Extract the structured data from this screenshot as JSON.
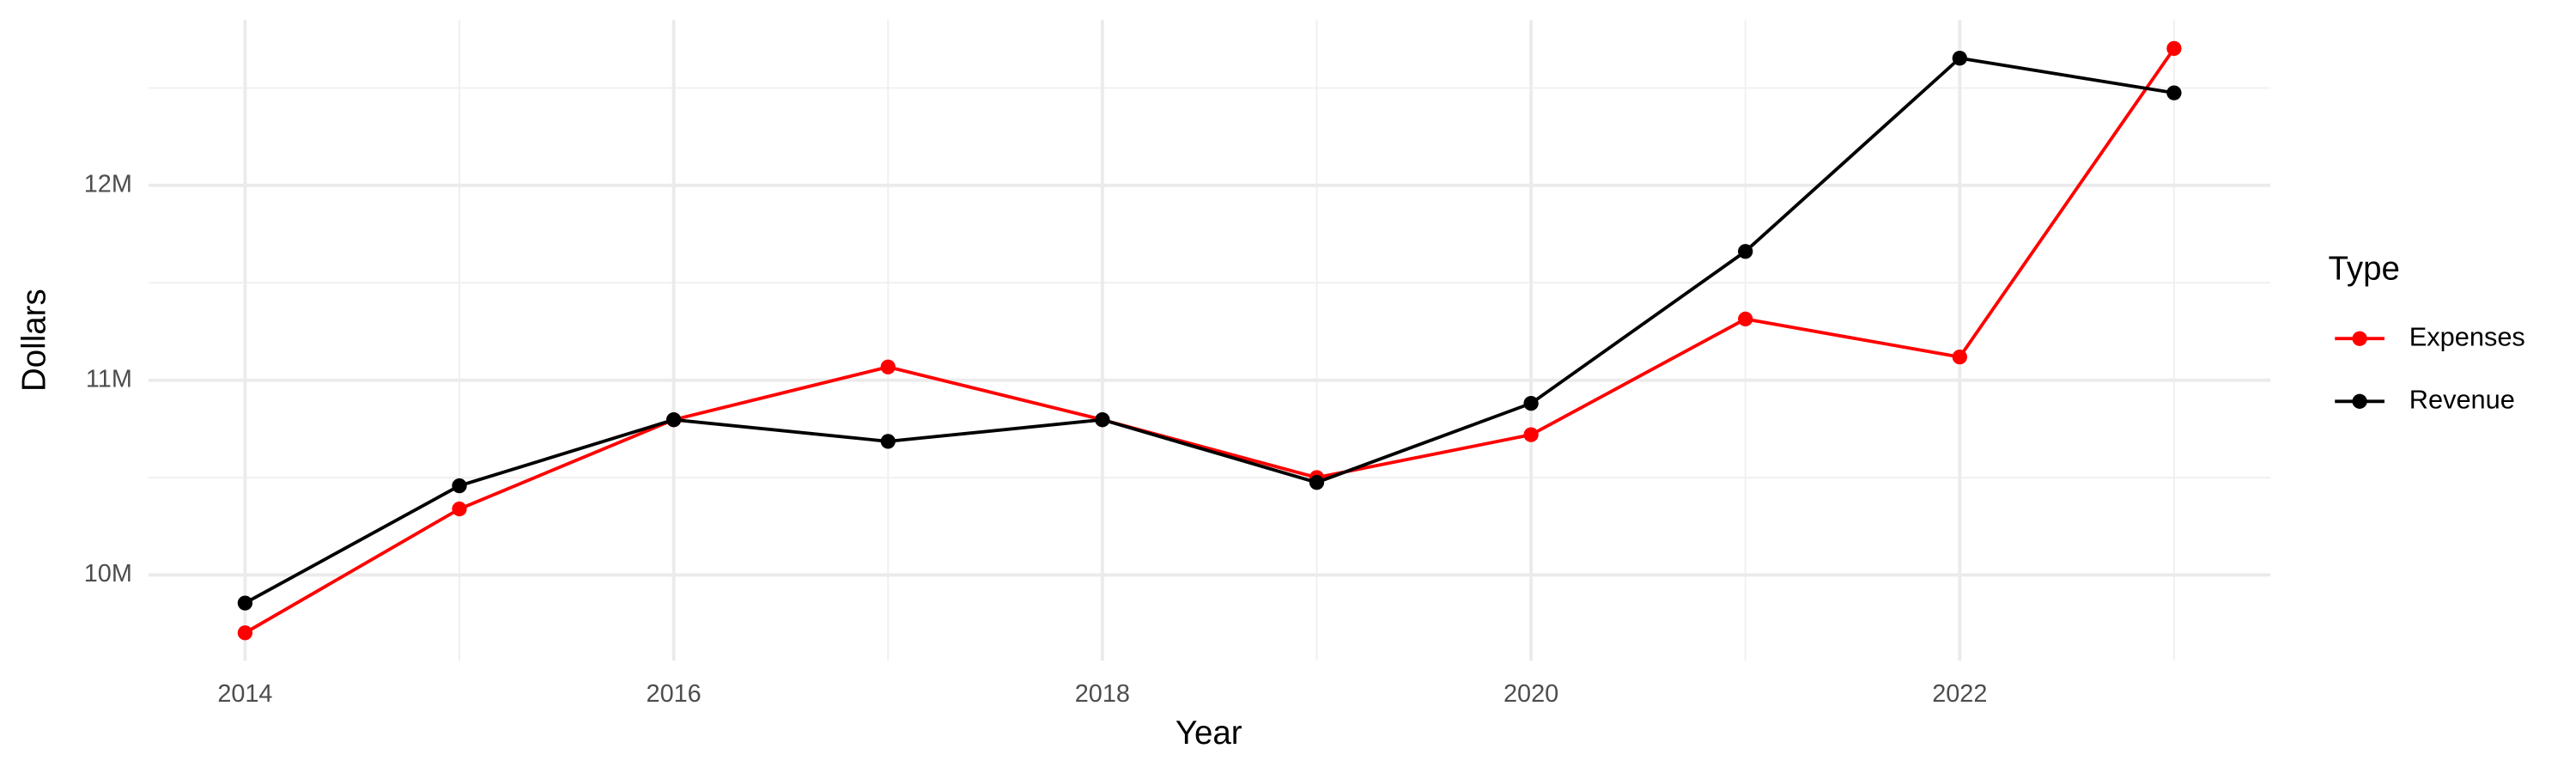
{
  "chart_data": {
    "type": "line",
    "x_label": "Year",
    "y_label": "Dollars",
    "legend_title": "Type",
    "x": [
      2014,
      2015,
      2016,
      2017,
      2018,
      2019,
      2020,
      2021,
      2022,
      2023
    ],
    "series": [
      {
        "name": "Expenses",
        "color": "#ff0000",
        "values": [
          9703000,
          10339000,
          10797000,
          11068000,
          10797000,
          10500000,
          10720000,
          11314000,
          11119000,
          12703000
        ]
      },
      {
        "name": "Revenue",
        "color": "#000000",
        "values": [
          9856000,
          10458000,
          10797000,
          10686000,
          10797000,
          10475000,
          10881000,
          11661000,
          12653000,
          12475000
        ]
      }
    ],
    "xlim": [
      2013.55,
      2023.45
    ],
    "xticks": [
      2014,
      2016,
      2018,
      2020,
      2022
    ],
    "xminor": [
      2015,
      2017,
      2019,
      2021,
      2023
    ],
    "ylim": [
      9560000,
      12850000
    ],
    "yticks": [
      {
        "value": 10000000,
        "label": "10M"
      },
      {
        "value": 11000000,
        "label": "11M"
      },
      {
        "value": 12000000,
        "label": "12M"
      }
    ],
    "yminor": [
      10500000,
      11500000,
      12500000
    ],
    "grid": true,
    "legend": "right"
  }
}
